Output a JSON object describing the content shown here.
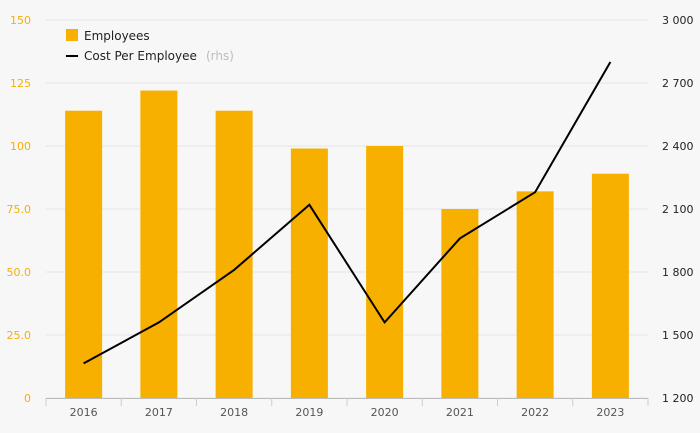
{
  "chart_data": {
    "type": "bar+line",
    "categories": [
      "2016",
      "2017",
      "2018",
      "2019",
      "2020",
      "2021",
      "2022",
      "2023"
    ],
    "series": [
      {
        "name": "Employees",
        "type": "bar",
        "axis": "left",
        "color": "#f7b000",
        "values": [
          114,
          122,
          114,
          99,
          100,
          75,
          82,
          89
        ]
      },
      {
        "name": "Cost Per Employee",
        "type": "line",
        "axis": "right",
        "color": "#000000",
        "values": [
          1365,
          1560,
          1810,
          2120,
          1560,
          1960,
          2180,
          2800
        ]
      }
    ],
    "y_left": {
      "ticks": [
        "0",
        "25.0",
        "50.0",
        "75.0",
        "100",
        "125",
        "150"
      ],
      "tick_values": [
        0,
        25,
        50,
        75,
        100,
        125,
        150
      ],
      "ylim": [
        0,
        150
      ],
      "color": "#f7b000"
    },
    "y_right": {
      "ticks": [
        "1 200",
        "1 500",
        "1 800",
        "2 100",
        "2 400",
        "2 700",
        "3 000"
      ],
      "tick_values": [
        1200,
        1500,
        1800,
        2100,
        2400,
        2700,
        3000
      ],
      "ylim": [
        1200,
        3000
      ],
      "color": "#222222"
    },
    "grid": true,
    "legend": {
      "position": "top-left",
      "rhs_suffix": "(rhs)"
    }
  }
}
